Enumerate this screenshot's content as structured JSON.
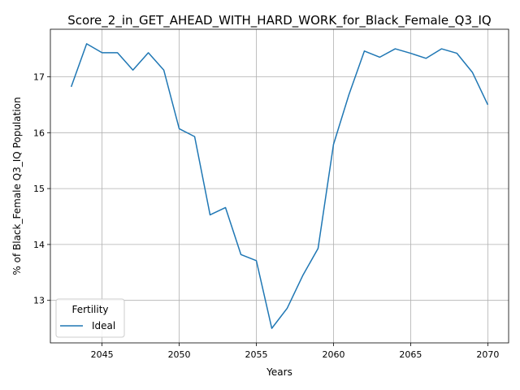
{
  "chart_data": {
    "type": "line",
    "title": "Score_2_in_GET_AHEAD_WITH_HARD_WORK_for_Black_Female_Q3_IQ",
    "xlabel": "Years",
    "ylabel": "% of Black_Female Q3_IQ Population",
    "xlim": [
      2041.65,
      2071.35
    ],
    "ylim": [
      12.24,
      17.85
    ],
    "xticks": [
      2045,
      2050,
      2055,
      2060,
      2065,
      2070
    ],
    "yticks": [
      13,
      14,
      15,
      16,
      17
    ],
    "grid": true,
    "legend": {
      "title": "Fertility",
      "position": "lower-left"
    },
    "x": [
      2043,
      2044,
      2045,
      2046,
      2047,
      2048,
      2049,
      2050,
      2051,
      2052,
      2053,
      2054,
      2055,
      2056,
      2057,
      2058,
      2059,
      2060,
      2061,
      2062,
      2063,
      2064,
      2065,
      2066,
      2067,
      2068,
      2069,
      2070
    ],
    "series": [
      {
        "name": "Ideal",
        "color": "#1f77b4",
        "values": [
          16.82,
          17.59,
          17.43,
          17.43,
          17.12,
          17.43,
          17.12,
          16.07,
          15.93,
          14.53,
          14.66,
          13.82,
          13.71,
          12.5,
          12.86,
          13.44,
          13.93,
          15.79,
          16.68,
          17.46,
          17.35,
          17.5,
          17.42,
          17.33,
          17.5,
          17.42,
          17.08,
          16.5
        ]
      }
    ]
  }
}
